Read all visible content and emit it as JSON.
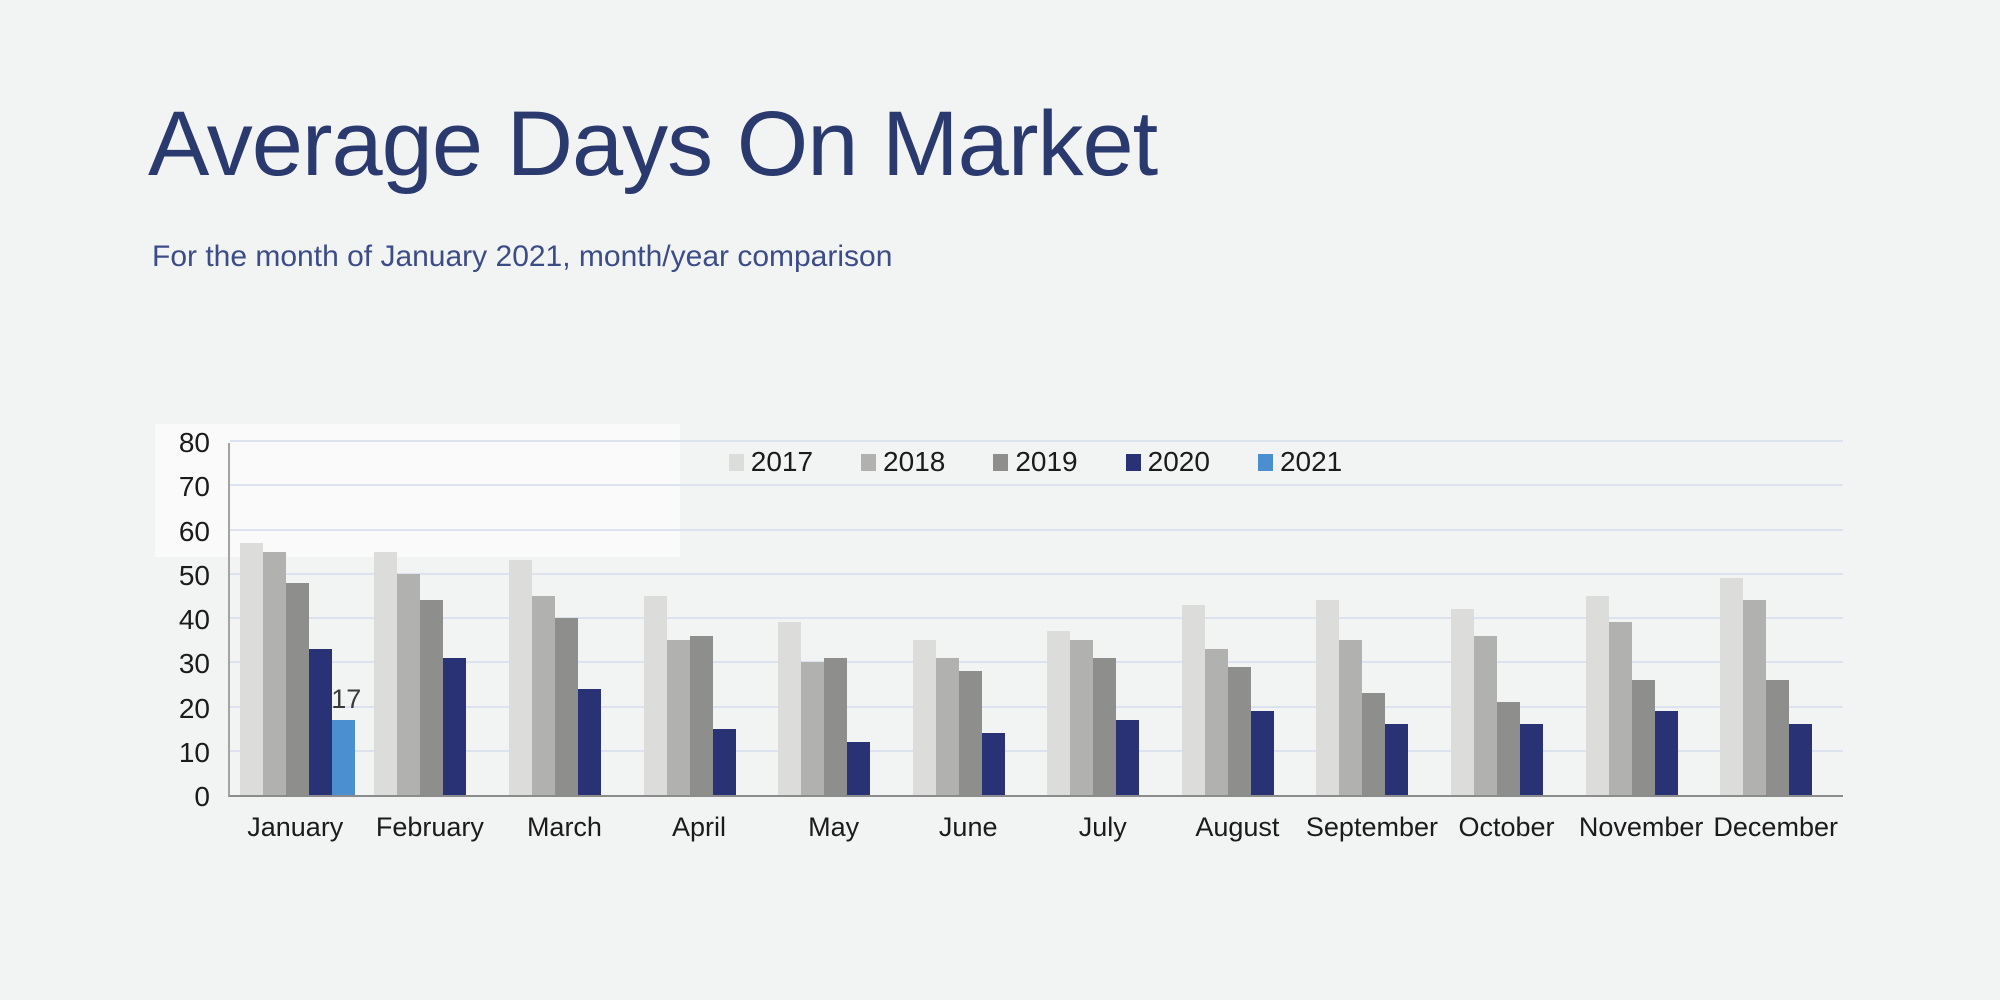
{
  "header": {
    "title": "Average Days On Market",
    "subtitle": "For the month of January 2021, month/year comparison"
  },
  "chart_data": {
    "type": "bar",
    "title": "Average Days On Market",
    "subtitle": "For the month of January 2021, month/year comparison",
    "categories": [
      "January",
      "February",
      "March",
      "April",
      "May",
      "June",
      "July",
      "August",
      "September",
      "October",
      "November",
      "December"
    ],
    "series": [
      {
        "name": "2017",
        "color": "#dcdcdb",
        "values": [
          57,
          55,
          53,
          45,
          39,
          35,
          37,
          43,
          44,
          42,
          45,
          49
        ]
      },
      {
        "name": "2018",
        "color": "#b1b1af",
        "values": [
          55,
          50,
          45,
          35,
          30,
          31,
          35,
          33,
          35,
          36,
          39,
          44
        ]
      },
      {
        "name": "2019",
        "color": "#8e8e8c",
        "values": [
          48,
          44,
          40,
          36,
          31,
          28,
          31,
          29,
          23,
          21,
          26,
          26
        ]
      },
      {
        "name": "2020",
        "color": "#293274",
        "values": [
          33,
          31,
          24,
          15,
          12,
          14,
          17,
          19,
          16,
          16,
          19,
          16
        ]
      },
      {
        "name": "2021",
        "color": "#4b8fd0",
        "values": [
          17,
          null,
          null,
          null,
          null,
          null,
          null,
          null,
          null,
          null,
          null,
          null
        ]
      }
    ],
    "xlabel": "",
    "ylabel": "",
    "ylim": [
      0,
      80
    ],
    "yticks": [
      0,
      10,
      20,
      30,
      40,
      50,
      60,
      70,
      80
    ],
    "grid": true,
    "gridline_color": "#dde3ee",
    "legend_position": "top-center",
    "data_labels": [
      {
        "series": "2021",
        "category": "January",
        "text": "17"
      }
    ],
    "colors": {
      "background": "#f2f3f3",
      "title_text": "#2b3a6e",
      "subtitle_text": "#3c4c87",
      "axis_text": "#1b1b1b",
      "axis_line": "#8c8c8c"
    }
  }
}
